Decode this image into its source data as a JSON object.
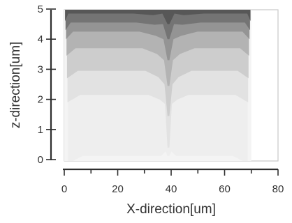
{
  "chart_data": {
    "type": "heatmap",
    "title": "",
    "xlabel": "X-direction[um]",
    "ylabel": "z-direction[um]",
    "xlim": [
      0,
      80
    ],
    "ylim": [
      0,
      5
    ],
    "x_ticks": [
      "0",
      "20",
      "40",
      "60",
      "80"
    ],
    "y_ticks": [
      "0",
      "1",
      "2",
      "3",
      "4",
      "5"
    ],
    "x_minor_step": 10,
    "grid": false,
    "legend": "none",
    "field_x_range": [
      0,
      70
    ],
    "field_z_range": [
      -0.4,
      5
    ],
    "shading": "darker at top surface, lighter with depth",
    "contour_levels": [
      {
        "level": 1,
        "color": "#eeeeee",
        "flat_top": 0.12,
        "notch_top": 0.12,
        "tail_depth": 0
      },
      {
        "level": 2,
        "color": "#e2e2e2",
        "flat_top": 2.15,
        "notch_top": 1.7,
        "tail_depth": 1.3
      },
      {
        "level": 3,
        "color": "#cdcdcd",
        "flat_top": 2.95,
        "notch_top": 2.35,
        "tail_depth": 0.9
      },
      {
        "level": 4,
        "color": "#b3b3b3",
        "flat_top": 3.7,
        "notch_top": 3.15,
        "tail_depth": 0.7
      },
      {
        "level": 5,
        "color": "#949494",
        "flat_top": 4.25,
        "notch_top": 3.85,
        "tail_depth": 0.55
      },
      {
        "level": 6,
        "color": "#747474",
        "flat_top": 4.55,
        "notch_top": 4.35,
        "tail_depth": 0.35
      },
      {
        "level": 7,
        "color": "#575757",
        "flat_top": 4.85,
        "notch_top": 4.7,
        "tail_depth": 0.2
      }
    ],
    "notch_center_x": 39
  }
}
